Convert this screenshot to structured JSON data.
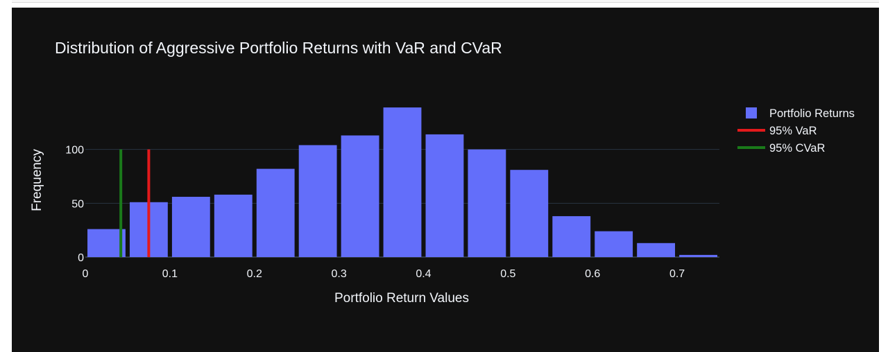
{
  "chart_data": {
    "type": "bar",
    "title": "Distribution of Aggressive Portfolio Returns with VaR and CVaR",
    "xlabel": "Portfolio Return Values",
    "ylabel": "Frequency",
    "xlim": [
      0,
      0.75
    ],
    "ylim": [
      0,
      150
    ],
    "bin_width": 0.05,
    "x": [
      0.025,
      0.075,
      0.125,
      0.175,
      0.225,
      0.275,
      0.325,
      0.375,
      0.425,
      0.475,
      0.525,
      0.575,
      0.625,
      0.675,
      0.725
    ],
    "values": [
      26,
      51,
      56,
      58,
      82,
      104,
      113,
      139,
      114,
      100,
      81,
      38,
      24,
      13,
      2
    ],
    "x_ticks": [
      0,
      0.1,
      0.2,
      0.3,
      0.4,
      0.5,
      0.6,
      0.7
    ],
    "x_tick_labels": [
      "0",
      "0.1",
      "0.2",
      "0.3",
      "0.4",
      "0.5",
      "0.6",
      "0.7"
    ],
    "y_ticks": [
      0,
      50,
      100
    ],
    "y_tick_labels": [
      "0",
      "50",
      "100"
    ],
    "grid": true,
    "series": [
      {
        "name": "Portfolio Returns",
        "kind": "bar",
        "color": "#636efa"
      },
      {
        "name": "95% VaR",
        "kind": "vline",
        "x": 0.075,
        "y_range": [
          0,
          100
        ],
        "color": "#e31a1c"
      },
      {
        "name": "95% CVaR",
        "kind": "vline",
        "x": 0.042,
        "y_range": [
          0,
          100
        ],
        "color": "#1a7a1a"
      }
    ],
    "legend_position": "top-right",
    "background": "#111111",
    "grid_color": "#283442",
    "text_color": "#f2f5fa"
  }
}
